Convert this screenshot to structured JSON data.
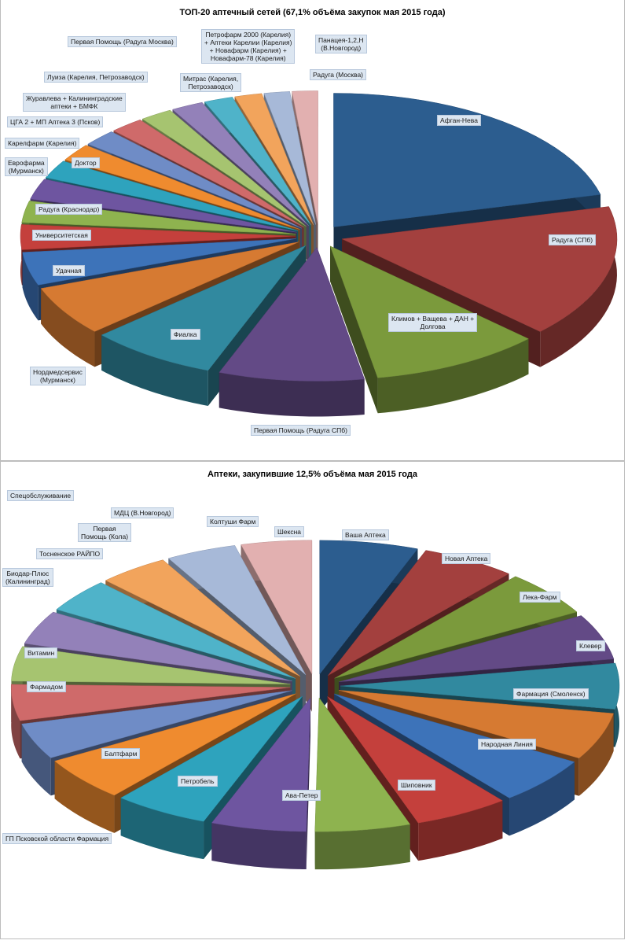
{
  "charts": [
    {
      "title": "ТОП-20 аптечный сетей (67,1% объёма закупок мая 2015 года)",
      "chart_data": {
        "type": "pie",
        "style": "3d exploded",
        "categories": [
          "Афган-Нева",
          "Радуга (СПб)",
          "Климов + Ващева + ДАН + Долгова",
          "Первая Помощь (Радуга СПб)",
          "Фиалка",
          "Нордмедсервис (Мурманск)",
          "Удачная",
          "Университетская",
          "Радуга (Краснодар)",
          "Еврофарма (Мурманск)",
          "Доктор",
          "Карелфарм (Карелия)",
          "ЦГА 2 + МП Аптека 3 (Псков)",
          "Журавлева + Калининградские аптеки + БМФК",
          "Луиза (Карелия, Петрозаводск)",
          "Первая Помощь (Радуга Москва)",
          "Митрас (Карелия, Петрозаводск)",
          "Петрофарм 2000 (Карелия) + Аптеки Карелии (Карелия) + Новафарм (Карелия) + Новафарм-78 (Карелия)",
          "Панацея-1,2,Н (В.Новгород)",
          "Радуга (Москва)"
        ],
        "values": [
          21,
          16,
          10,
          8.5,
          7.5,
          6,
          4,
          3,
          2.6,
          2.5,
          2.2,
          2.1,
          2,
          2,
          1.9,
          1.9,
          1.7,
          1.6,
          1.5,
          1.5
        ],
        "colors": [
          "#2c5d8f",
          "#a3403e",
          "#7b9a3c",
          "#634a86",
          "#31899f",
          "#d67a32",
          "#3d73b9",
          "#c4403c",
          "#8eb34f",
          "#6e55a0",
          "#2ea3bd",
          "#ef8b2f",
          "#6f8cc6",
          "#cf6a6a",
          "#a6c470",
          "#9381b9",
          "#4fb3c9",
          "#f2a45c",
          "#a7b9d8",
          "#e2b0b0"
        ]
      }
    },
    {
      "title": "Аптеки, закупившие 12,5% объёма мая 2015 года",
      "chart_data": {
        "type": "pie",
        "style": "3d exploded",
        "categories": [
          "Ваша Аптека",
          "Новая Аптека",
          "Лека-Фарм",
          "Клевер",
          "Фармация (Смоленск)",
          "Народная Линия",
          "Шиповник",
          "Ава-Петер",
          "Петробель",
          "Балтфарм",
          "ГП Псковской области Фармация",
          "Фармадом",
          "Витамин",
          "Биодар-Плюс (Калининград)",
          "Тосненское РАЙПО",
          "Спецобслуживание",
          "Первая Помощь (Кола)",
          "МДЦ (В.Новгород)",
          "Колтуши Фарм",
          "Шексна"
        ],
        "values": [
          6,
          5.8,
          5.8,
          5.8,
          5.8,
          6,
          6,
          5.8,
          5.8,
          5.8,
          5.8,
          5.6,
          4.6,
          4.6,
          4.4,
          4.3,
          4.3,
          4.3,
          4.3,
          4.3
        ],
        "colors": [
          "#2c5d8f",
          "#a3403e",
          "#7b9a3c",
          "#634a86",
          "#31899f",
          "#d67a32",
          "#3d73b9",
          "#c4403c",
          "#8eb34f",
          "#6e55a0",
          "#2ea3bd",
          "#ef8b2f",
          "#6f8cc6",
          "#cf6a6a",
          "#a6c470",
          "#9381b9",
          "#4fb3c9",
          "#f2a45c",
          "#a7b9d8",
          "#e2b0b0"
        ]
      }
    }
  ]
}
